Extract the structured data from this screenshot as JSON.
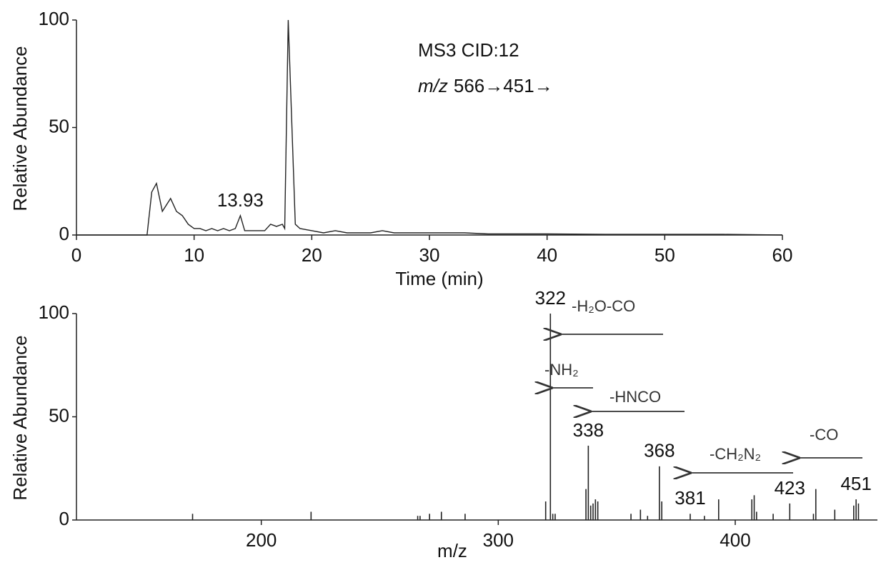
{
  "chart_data": [
    {
      "type": "line",
      "x_label": "Time (min)",
      "y_label": "Relative Abundance",
      "annotations": [
        {
          "text": "MS3 CID:12"
        },
        {
          "italic": "m/z",
          "text": "566→451→"
        }
      ],
      "x": [
        0,
        6,
        6.4,
        6.8,
        7.3,
        8,
        8.5,
        9,
        9.5,
        10,
        10.5,
        11,
        11.5,
        12,
        12.5,
        13,
        13.5,
        13.93,
        14.3,
        15,
        16,
        16.5,
        17,
        17.5,
        17.7,
        18.0,
        18.6,
        19,
        20,
        21,
        22,
        23,
        24,
        25,
        26,
        27,
        28,
        30,
        33,
        35,
        40,
        45,
        50,
        55,
        60
      ],
      "series": [
        {
          "color": "#222222",
          "values": [
            0,
            0,
            20,
            24,
            11,
            17,
            11,
            9,
            5,
            3,
            3,
            2,
            3,
            2,
            3,
            2,
            3,
            9,
            2,
            2,
            2,
            5,
            4,
            5,
            3,
            100,
            5,
            3,
            2,
            1,
            2,
            1,
            1,
            1,
            2,
            1,
            1,
            1,
            1,
            0.5,
            0.5,
            0.3,
            0.3,
            0.3,
            0
          ],
          "point_labels": [
            null,
            null,
            null,
            null,
            null,
            null,
            null,
            null,
            null,
            null,
            null,
            null,
            null,
            null,
            null,
            null,
            null,
            "13.93",
            null,
            null,
            null,
            null,
            null,
            null,
            null,
            null,
            null,
            null,
            null,
            null,
            null,
            null,
            null,
            null,
            null,
            null,
            null,
            null,
            null,
            null,
            null,
            null,
            null,
            null,
            null
          ]
        }
      ],
      "xlim": [
        0,
        60
      ],
      "xticks": [
        0,
        10,
        20,
        30,
        40,
        50,
        60
      ],
      "ylim": [
        0,
        100
      ],
      "yticks": [
        0,
        50,
        100
      ]
    },
    {
      "type": "stem",
      "x_label": "m/z",
      "y_label": "Relative Abundance",
      "annotations": [
        {
          "text": "-H₂O-CO"
        },
        {
          "text": "-NH₂"
        },
        {
          "text": "-HNCO"
        },
        {
          "text": "-CH₂N₂"
        },
        {
          "text": "-CO"
        }
      ],
      "x": [
        171,
        221,
        266,
        267,
        271,
        276,
        286,
        320,
        322,
        323,
        324,
        337,
        338,
        339,
        340,
        341,
        342,
        356,
        360,
        363,
        368,
        369,
        381,
        387,
        393,
        407,
        408,
        409,
        416,
        423,
        433,
        434,
        442,
        450,
        451,
        452
      ],
      "series": [
        {
          "color": "#222222",
          "values": [
            3,
            4,
            2,
            2,
            3,
            4,
            3,
            9,
            100,
            3,
            3,
            15,
            36,
            7,
            8,
            10,
            9,
            3,
            5,
            2,
            26,
            9,
            3,
            2,
            10,
            10,
            12,
            4,
            3,
            8,
            3,
            15,
            5,
            7,
            10,
            8
          ],
          "point_labels": [
            null,
            null,
            null,
            null,
            null,
            null,
            null,
            null,
            "322",
            null,
            null,
            null,
            "338",
            null,
            null,
            null,
            null,
            null,
            null,
            null,
            "368",
            null,
            "381",
            null,
            null,
            null,
            null,
            null,
            null,
            "423",
            null,
            null,
            null,
            null,
            "451",
            null
          ]
        }
      ],
      "xlim": [
        122,
        460
      ],
      "xticks": [
        200,
        300,
        400
      ],
      "ylim": [
        0,
        100
      ],
      "yticks": [
        0,
        50,
        100
      ]
    }
  ]
}
